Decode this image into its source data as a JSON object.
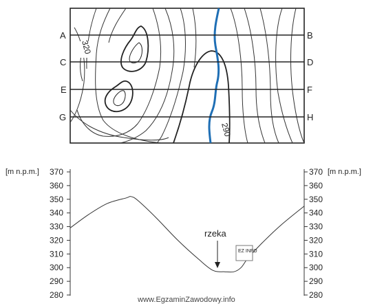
{
  "map": {
    "profile_lines": [
      {
        "left": "A",
        "right": "B"
      },
      {
        "left": "C",
        "right": "D"
      },
      {
        "left": "E",
        "right": "F"
      },
      {
        "left": "G",
        "right": "H"
      }
    ],
    "contour_labels": [
      "320",
      "290"
    ],
    "colors": {
      "river": "#1f6fb5",
      "contour": "#333333",
      "frame": "#222222"
    }
  },
  "profile": {
    "unit_label": "[m n.p.m.]",
    "ticks": [
      "370",
      "360",
      "350",
      "340",
      "330",
      "320",
      "310",
      "300",
      "290",
      "280"
    ],
    "annotation": "rzeka",
    "stamp_text": "EZ INFO",
    "series": [
      {
        "d": 0.0,
        "h": 329
      },
      {
        "d": 0.08,
        "h": 339
      },
      {
        "d": 0.16,
        "h": 347
      },
      {
        "d": 0.24,
        "h": 351
      },
      {
        "d": 0.26,
        "h": 352
      },
      {
        "d": 0.29,
        "h": 349
      },
      {
        "d": 0.37,
        "h": 336
      },
      {
        "d": 0.46,
        "h": 320
      },
      {
        "d": 0.55,
        "h": 306
      },
      {
        "d": 0.61,
        "h": 298
      },
      {
        "d": 0.66,
        "h": 297
      },
      {
        "d": 0.7,
        "h": 297
      },
      {
        "d": 0.73,
        "h": 300
      },
      {
        "d": 0.76,
        "h": 307
      },
      {
        "d": 0.82,
        "h": 318
      },
      {
        "d": 0.9,
        "h": 331
      },
      {
        "d": 1.0,
        "h": 345
      }
    ],
    "ylim": [
      280,
      370
    ]
  },
  "footer": "www.EgzaminZawodowy.info"
}
